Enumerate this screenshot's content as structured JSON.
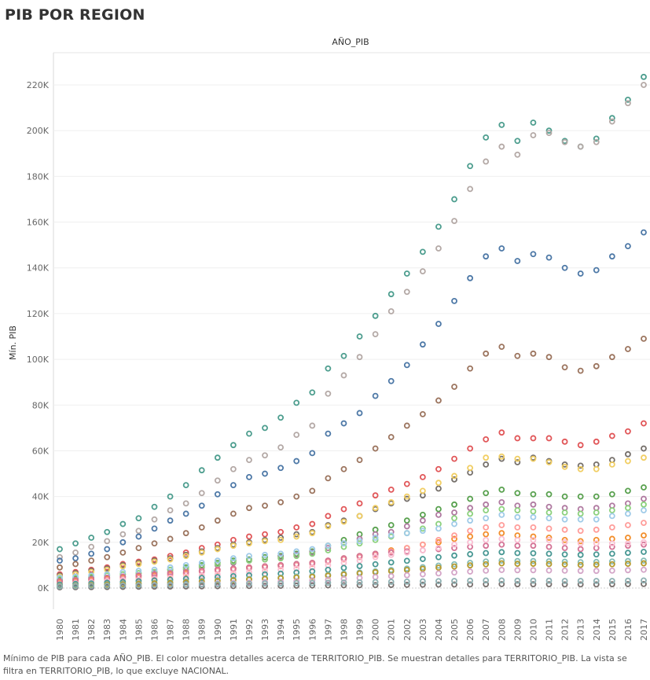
{
  "page": {
    "title": "PIB POR REGION",
    "footer": "Mínimo de PIB para cada AÑO_PIB.  El color muestra detalles acerca de TERRITORIO_PIB.  Se muestran detalles para TERRITORIO_PIB. La vista se filtra en TERRITORIO_PIB, lo que excluye NACIONAL."
  },
  "chart_data": {
    "type": "scatter",
    "column_header": "AÑO_PIB",
    "ylabel": "Mín. PIB",
    "xlabel": "",
    "ylim": [
      -2000,
      231000
    ],
    "yticks": [
      0,
      20000,
      40000,
      60000,
      80000,
      100000,
      120000,
      140000,
      160000,
      180000,
      200000,
      220000
    ],
    "ytick_labels": [
      "0K",
      "20K",
      "40K",
      "60K",
      "80K",
      "100K",
      "120K",
      "140K",
      "160K",
      "180K",
      "200K",
      "220K"
    ],
    "grid": true,
    "x": [
      "1980",
      "1981",
      "1982",
      "1983",
      "1984",
      "1985",
      "1986",
      "1987",
      "1988",
      "1989",
      "1990",
      "1991",
      "1992",
      "1993",
      "1994",
      "1995",
      "1996",
      "1997",
      "1998",
      "1999",
      "2000",
      "2001",
      "2002",
      "2003",
      "2004",
      "2005",
      "2006",
      "2007",
      "2008",
      "2009",
      "2010",
      "2011",
      "2012",
      "2013",
      "2014",
      "2015",
      "2016",
      "2017"
    ],
    "series": [
      {
        "color": "#4e9e8f",
        "values": [
          17000,
          19500,
          22000,
          24500,
          28000,
          30500,
          35500,
          40000,
          45000,
          51500,
          57000,
          62500,
          67500,
          70000,
          74500,
          81000,
          85500,
          96000,
          101500,
          110000,
          119000,
          128500,
          137500,
          147000,
          158000,
          170000,
          184500,
          197000,
          202500,
          195500,
          203500,
          200000,
          195500,
          193000,
          196500,
          205500,
          213500,
          223500
        ]
      },
      {
        "color": "#b4a9a6",
        "values": [
          13500,
          15500,
          18000,
          20500,
          23500,
          25000,
          30000,
          34000,
          37000,
          41500,
          47000,
          52000,
          56000,
          58000,
          61500,
          67000,
          71000,
          85000,
          93000,
          101000,
          111000,
          121000,
          129500,
          138500,
          148500,
          160500,
          174500,
          186500,
          193000,
          189500,
          198000,
          199000,
          195000,
          193000,
          195000,
          204000,
          212000,
          220000
        ]
      },
      {
        "color": "#4e79a7",
        "values": [
          12000,
          13000,
          15000,
          17000,
          20000,
          22500,
          26000,
          29500,
          32500,
          36000,
          41000,
          45000,
          48500,
          50000,
          52500,
          55500,
          59000,
          67500,
          72000,
          76500,
          84000,
          90500,
          97500,
          106500,
          115500,
          125500,
          135500,
          145000,
          148500,
          143000,
          146000,
          144500,
          140000,
          137500,
          139000,
          145000,
          149500,
          155500
        ]
      },
      {
        "color": "#9c755f",
        "values": [
          9000,
          10500,
          12000,
          13500,
          15500,
          17500,
          19500,
          21500,
          24000,
          26500,
          29500,
          32500,
          35000,
          36000,
          37500,
          40000,
          42500,
          48000,
          52000,
          56000,
          61000,
          66000,
          71000,
          76000,
          82000,
          88000,
          96000,
          102500,
          105500,
          101500,
          102500,
          101000,
          96500,
          95000,
          97000,
          101000,
          104500,
          109000
        ]
      },
      {
        "color": "#e15759",
        "values": [
          6000,
          7000,
          8000,
          9000,
          10500,
          11500,
          12500,
          14000,
          15500,
          17500,
          19000,
          21000,
          22500,
          23500,
          24500,
          26500,
          28000,
          31500,
          34500,
          37000,
          40500,
          43000,
          45500,
          48500,
          52000,
          56500,
          61000,
          65000,
          68000,
          65500,
          65500,
          65500,
          64000,
          62500,
          64000,
          66500,
          68500,
          72000
        ]
      },
      {
        "color": "#76706b",
        "values": [
          5500,
          6500,
          7500,
          8500,
          10000,
          11000,
          12000,
          13000,
          14500,
          16000,
          17500,
          19000,
          20000,
          21000,
          22000,
          23500,
          24500,
          27500,
          29500,
          31500,
          34500,
          37000,
          39000,
          40500,
          43500,
          47500,
          50500,
          54000,
          56500,
          55000,
          57000,
          55500,
          54000,
          53500,
          54000,
          56000,
          58500,
          61000
        ]
      },
      {
        "color": "#f1ce63",
        "values": [
          5000,
          6000,
          7000,
          8000,
          9500,
          10500,
          11500,
          12500,
          14000,
          15500,
          17000,
          18500,
          19500,
          20500,
          21000,
          22500,
          24000,
          27000,
          29000,
          31500,
          35000,
          37500,
          40000,
          42500,
          46000,
          49000,
          52500,
          57000,
          57500,
          56500,
          56500,
          55000,
          53000,
          52000,
          52000,
          54000,
          55500,
          57000
        ]
      },
      {
        "color": "#59a14f",
        "values": [
          3500,
          4000,
          4500,
          5500,
          6000,
          6500,
          7000,
          8000,
          9000,
          10000,
          11000,
          12000,
          12500,
          13500,
          14000,
          15000,
          16000,
          18500,
          21000,
          23500,
          25500,
          27500,
          29500,
          32000,
          34500,
          36500,
          39000,
          41500,
          43000,
          41500,
          41000,
          41000,
          40000,
          40000,
          40000,
          41000,
          42500,
          44000
        ]
      },
      {
        "color": "#b07aa1",
        "values": [
          3000,
          3500,
          4000,
          4500,
          5000,
          5500,
          6500,
          7000,
          8000,
          9000,
          10000,
          11000,
          12000,
          12500,
          13500,
          14500,
          15500,
          17500,
          19500,
          21500,
          23500,
          24500,
          27000,
          29500,
          32000,
          33000,
          35000,
          36500,
          37500,
          36000,
          36500,
          35500,
          35000,
          34500,
          35000,
          36000,
          37000,
          39000
        ]
      },
      {
        "color": "#8cd17d",
        "values": [
          4000,
          4500,
          5000,
          5500,
          6000,
          6500,
          7000,
          8000,
          8500,
          9500,
          10500,
          11500,
          12000,
          12500,
          13000,
          14000,
          15000,
          16500,
          18000,
          19500,
          21000,
          22500,
          24000,
          26000,
          28000,
          30500,
          32500,
          34000,
          34500,
          34000,
          33500,
          33000,
          33000,
          32500,
          33000,
          34000,
          35000,
          36500
        ]
      },
      {
        "color": "#a0cbe8",
        "values": [
          4500,
          5000,
          5500,
          6000,
          7000,
          7500,
          8000,
          9000,
          10000,
          11000,
          12000,
          13000,
          14000,
          14500,
          15000,
          16000,
          17000,
          18500,
          19500,
          20500,
          22000,
          23000,
          24000,
          25000,
          26000,
          28000,
          29500,
          30500,
          32000,
          31000,
          31000,
          30500,
          30000,
          30000,
          30000,
          31500,
          32500,
          34000
        ]
      },
      {
        "color": "#f28e2b",
        "values": [
          2500,
          3000,
          3500,
          4000,
          4500,
          5000,
          5500,
          6000,
          6500,
          7500,
          8000,
          8500,
          9000,
          9500,
          10000,
          10500,
          11000,
          12000,
          13000,
          14000,
          15000,
          16500,
          17500,
          19000,
          20000,
          21500,
          22500,
          23500,
          24000,
          23000,
          22500,
          22000,
          21000,
          20500,
          21000,
          21500,
          22000,
          23000
        ]
      },
      {
        "color": "#ff9d9a",
        "values": [
          2000,
          2500,
          3000,
          3500,
          4000,
          4500,
          5000,
          5500,
          6000,
          7000,
          7500,
          8000,
          8500,
          9000,
          9500,
          10000,
          10500,
          11500,
          12500,
          13500,
          14500,
          16000,
          17500,
          19000,
          21000,
          23000,
          25000,
          26500,
          27500,
          26500,
          26500,
          26000,
          25500,
          25000,
          25500,
          26500,
          27500,
          28500
        ]
      },
      {
        "color": "#d37295",
        "values": [
          3000,
          3500,
          4000,
          4500,
          5000,
          5500,
          6000,
          6500,
          7000,
          7500,
          8000,
          8500,
          9000,
          9500,
          10000,
          10500,
          11000,
          12000,
          13000,
          14000,
          15000,
          15500,
          16000,
          16500,
          17000,
          17500,
          18000,
          18500,
          19000,
          18500,
          18500,
          18000,
          17500,
          17000,
          17500,
          18000,
          18500,
          19000
        ]
      },
      {
        "color": "#fabfd2",
        "values": [
          1500,
          2000,
          2500,
          3000,
          3500,
          3500,
          4000,
          4500,
          5000,
          5500,
          6000,
          6500,
          7000,
          7500,
          8000,
          8500,
          9000,
          10000,
          11000,
          12000,
          13500,
          14500,
          15500,
          16500,
          17500,
          19000,
          20000,
          21000,
          21500,
          21000,
          21000,
          21000,
          20000,
          19500,
          19500,
          19500,
          19500,
          20000
        ]
      },
      {
        "color": "#499894",
        "values": [
          1500,
          1800,
          2000,
          2300,
          2600,
          3000,
          3300,
          3600,
          4000,
          4400,
          4800,
          5200,
          5600,
          6000,
          6300,
          6800,
          7300,
          8000,
          8800,
          9600,
          10400,
          11200,
          11900,
          12700,
          13500,
          14200,
          14800,
          15300,
          15700,
          15300,
          15200,
          15000,
          14700,
          14500,
          14700,
          15000,
          15400,
          15800
        ]
      },
      {
        "color": "#86bcb6",
        "values": [
          1000,
          1200,
          1400,
          1600,
          1800,
          2000,
          2200,
          2500,
          2800,
          3100,
          3400,
          3700,
          4000,
          4300,
          4600,
          5000,
          5300,
          5800,
          6300,
          6800,
          7300,
          7900,
          8500,
          9100,
          9800,
          10400,
          11000,
          11600,
          12000,
          11800,
          11800,
          11700,
          11500,
          11300,
          11400,
          11600,
          11800,
          12000
        ]
      },
      {
        "color": "#b6992d",
        "values": [
          800,
          1000,
          1200,
          1400,
          1600,
          1800,
          2000,
          2200,
          2500,
          2800,
          3100,
          3400,
          3700,
          4000,
          4300,
          4600,
          4900,
          5400,
          5900,
          6400,
          6900,
          7400,
          7900,
          8400,
          8900,
          9400,
          9900,
          10400,
          10800,
          10600,
          10600,
          10500,
          10300,
          10100,
          10200,
          10400,
          10600,
          10800
        ]
      },
      {
        "color": "#d4a6c8",
        "values": [
          500,
          600,
          700,
          800,
          900,
          1000,
          1200,
          1400,
          1600,
          1800,
          2000,
          2200,
          2400,
          2600,
          2800,
          3000,
          3300,
          3600,
          4000,
          4400,
          4800,
          5200,
          5600,
          6000,
          6400,
          6800,
          7200,
          7600,
          7900,
          7800,
          7800,
          7700,
          7600,
          7500,
          7500,
          7600,
          7800,
          8000
        ]
      },
      {
        "color": "#79706e",
        "values": [
          300,
          350,
          400,
          450,
          500,
          550,
          600,
          650,
          700,
          750,
          800,
          850,
          900,
          950,
          1000,
          1050,
          1100,
          1150,
          1200,
          1250,
          1300,
          1350,
          1400,
          1450,
          1500,
          1550,
          1600,
          1650,
          1700,
          1650,
          1650,
          1650,
          1600,
          1600,
          1600,
          1650,
          1700,
          1750
        ]
      },
      {
        "color": "#8fb1b3",
        "values": [
          700,
          800,
          900,
          1000,
          1100,
          1200,
          1300,
          1400,
          1500,
          1600,
          1700,
          1800,
          1900,
          2000,
          2000,
          2100,
          2200,
          2300,
          2400,
          2500,
          2600,
          2700,
          2800,
          2900,
          3000,
          3100,
          3200,
          3300,
          3300,
          3200,
          3200,
          3200,
          3100,
          3100,
          3100,
          3100,
          3200,
          3300
        ]
      }
    ]
  }
}
